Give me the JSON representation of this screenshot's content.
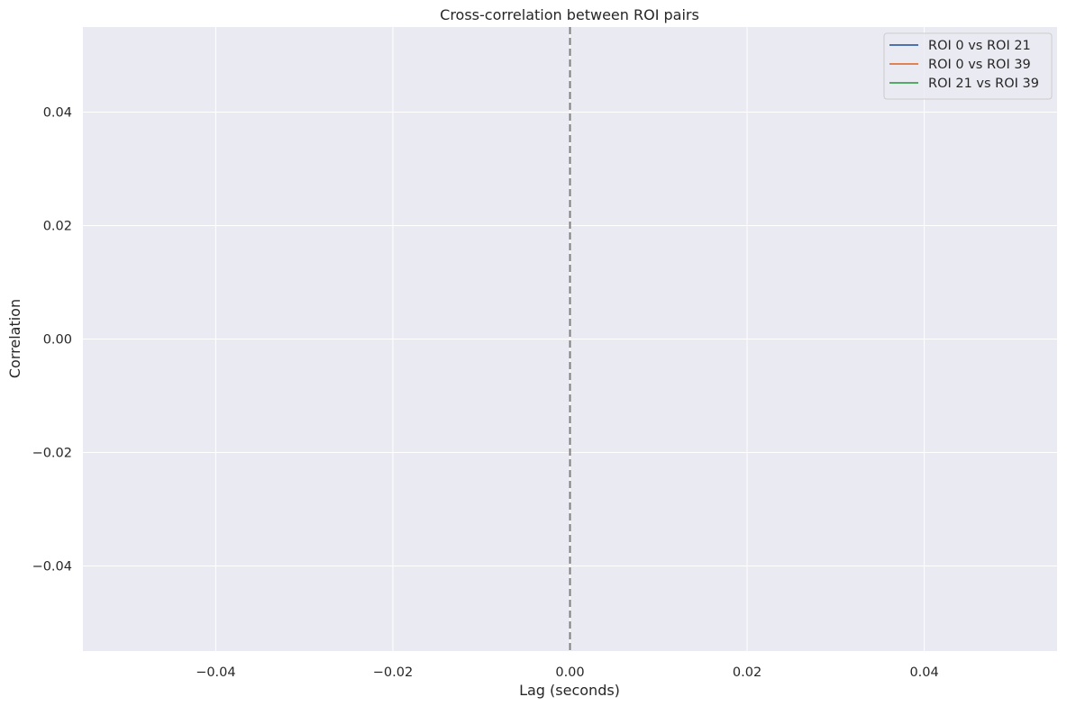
{
  "chart_data": {
    "type": "line",
    "title": "Cross-correlation between ROI pairs",
    "xlabel": "Lag (seconds)",
    "ylabel": "Correlation",
    "xlim": [
      -0.055,
      0.055
    ],
    "ylim": [
      -0.055,
      0.055
    ],
    "x_ticks": [
      -0.04,
      -0.02,
      0.0,
      0.02,
      0.04
    ],
    "x_tick_labels": [
      "−0.04",
      "−0.02",
      "0.00",
      "0.02",
      "0.04"
    ],
    "y_ticks": [
      0.04,
      0.02,
      0.0,
      -0.02,
      -0.04
    ],
    "y_tick_labels": [
      "0.04",
      "0.02",
      "0.00",
      "−0.02",
      "−0.04"
    ],
    "grid": true,
    "legend_position": "top-right",
    "series": [
      {
        "name": "ROI 0 vs ROI 21",
        "color": "#4c72b0",
        "x": [],
        "y": []
      },
      {
        "name": "ROI 0 vs ROI 39",
        "color": "#dd8452",
        "x": [],
        "y": []
      },
      {
        "name": "ROI 21 vs ROI 39",
        "color": "#55a868",
        "x": [],
        "y": []
      }
    ],
    "reference_line": {
      "axis": "x",
      "value": 0,
      "style": "dashed",
      "color": "#808080"
    },
    "background_color": "#eaeaf2",
    "grid_color": "#ffffff"
  }
}
